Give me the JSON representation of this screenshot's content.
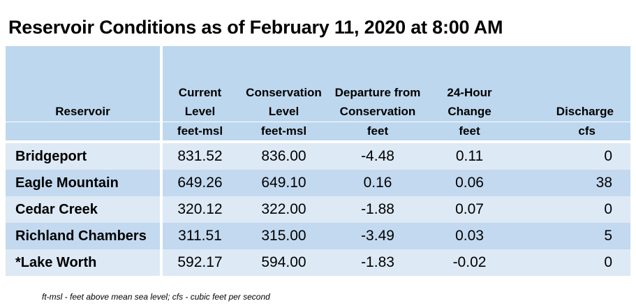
{
  "title": "Reservoir Conditions as of February 11, 2020 at 8:00 AM",
  "table": {
    "headers": [
      {
        "label": "Reservoir",
        "unit": ""
      },
      {
        "label": "Current Level",
        "unit": "feet-msl"
      },
      {
        "label": "Conservation Level",
        "unit": "feet-msl"
      },
      {
        "label": "Departure from Conservation",
        "unit": "feet"
      },
      {
        "label": "24-Hour Change",
        "unit": "feet"
      },
      {
        "label": "Discharge",
        "unit": "cfs"
      }
    ],
    "rows": [
      {
        "name": "Bridgeport",
        "current": "831.52",
        "conservation": "836.00",
        "departure": "-4.48",
        "change": "0.11",
        "discharge": "0"
      },
      {
        "name": "Eagle Mountain",
        "current": "649.26",
        "conservation": "649.10",
        "departure": "0.16",
        "change": "0.06",
        "discharge": "38"
      },
      {
        "name": "Cedar Creek",
        "current": "320.12",
        "conservation": "322.00",
        "departure": "-1.88",
        "change": "0.07",
        "discharge": "0"
      },
      {
        "name": "Richland Chambers",
        "current": "311.51",
        "conservation": "315.00",
        "departure": "-3.49",
        "change": "0.03",
        "discharge": "5"
      },
      {
        "name": "*Lake Worth",
        "current": "592.17",
        "conservation": "594.00",
        "departure": "-1.83",
        "change": "-0.02",
        "discharge": "0"
      }
    ]
  },
  "footnote": "ft-msl - feet above mean sea level; cfs - cubic feet per second",
  "colors": {
    "header_bg": "#bdd7ee",
    "row_light": "#dde9f5",
    "row_dark": "#c3d9ef"
  }
}
